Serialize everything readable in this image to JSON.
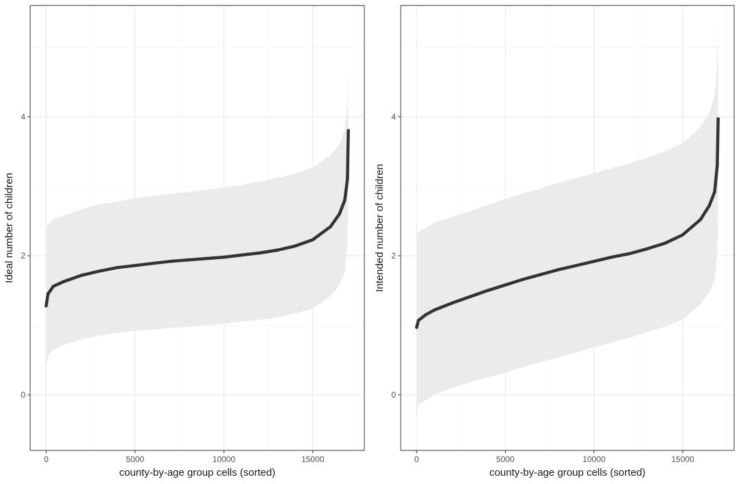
{
  "chart_data": [
    {
      "type": "area",
      "xlabel": "county-by-age group cells (sorted)",
      "ylabel": "Ideal number of children",
      "xlim": [
        -900,
        17900
      ],
      "ylim": [
        -0.8,
        5.6
      ],
      "xticks": [
        0,
        5000,
        10000,
        15000
      ],
      "yticks": [
        0,
        2,
        4
      ],
      "grid": true,
      "points": [
        {
          "x": 0,
          "y": 1.28,
          "lo": 0.4,
          "hi": 2.4
        },
        {
          "x": 100,
          "y": 1.45,
          "lo": 0.55,
          "hi": 2.45
        },
        {
          "x": 400,
          "y": 1.56,
          "lo": 0.65,
          "hi": 2.52
        },
        {
          "x": 1000,
          "y": 1.63,
          "lo": 0.72,
          "hi": 2.58
        },
        {
          "x": 2000,
          "y": 1.72,
          "lo": 0.8,
          "hi": 2.67
        },
        {
          "x": 3000,
          "y": 1.78,
          "lo": 0.85,
          "hi": 2.74
        },
        {
          "x": 4000,
          "y": 1.83,
          "lo": 0.89,
          "hi": 2.78
        },
        {
          "x": 5000,
          "y": 1.86,
          "lo": 0.92,
          "hi": 2.83
        },
        {
          "x": 6000,
          "y": 1.89,
          "lo": 0.94,
          "hi": 2.86
        },
        {
          "x": 7000,
          "y": 1.92,
          "lo": 0.96,
          "hi": 2.89
        },
        {
          "x": 8000,
          "y": 1.94,
          "lo": 0.98,
          "hi": 2.92
        },
        {
          "x": 9000,
          "y": 1.96,
          "lo": 1.0,
          "hi": 2.95
        },
        {
          "x": 10000,
          "y": 1.98,
          "lo": 1.02,
          "hi": 2.98
        },
        {
          "x": 11000,
          "y": 2.01,
          "lo": 1.05,
          "hi": 3.02
        },
        {
          "x": 12000,
          "y": 2.04,
          "lo": 1.08,
          "hi": 3.07
        },
        {
          "x": 13000,
          "y": 2.08,
          "lo": 1.11,
          "hi": 3.12
        },
        {
          "x": 14000,
          "y": 2.14,
          "lo": 1.17,
          "hi": 3.18
        },
        {
          "x": 15000,
          "y": 2.23,
          "lo": 1.24,
          "hi": 3.27
        },
        {
          "x": 16000,
          "y": 2.42,
          "lo": 1.42,
          "hi": 3.45
        },
        {
          "x": 16500,
          "y": 2.6,
          "lo": 1.58,
          "hi": 3.6
        },
        {
          "x": 16800,
          "y": 2.8,
          "lo": 1.76,
          "hi": 3.8
        },
        {
          "x": 16950,
          "y": 3.1,
          "lo": 2.2,
          "hi": 4.2
        },
        {
          "x": 17000,
          "y": 3.8,
          "lo": 2.9,
          "hi": 4.7
        }
      ]
    },
    {
      "type": "area",
      "xlabel": "county-by-age group cells (sorted)",
      "ylabel": "Intended number of children",
      "xlim": [
        -900,
        17900
      ],
      "ylim": [
        -0.8,
        5.6
      ],
      "xticks": [
        0,
        5000,
        10000,
        15000
      ],
      "yticks": [
        0,
        2,
        4
      ],
      "grid": true,
      "points": [
        {
          "x": 0,
          "y": 0.97,
          "lo": -0.25,
          "hi": 2.3
        },
        {
          "x": 100,
          "y": 1.07,
          "lo": -0.15,
          "hi": 2.35
        },
        {
          "x": 500,
          "y": 1.15,
          "lo": -0.08,
          "hi": 2.4
        },
        {
          "x": 1000,
          "y": 1.22,
          "lo": 0.0,
          "hi": 2.48
        },
        {
          "x": 2000,
          "y": 1.32,
          "lo": 0.1,
          "hi": 2.56
        },
        {
          "x": 3000,
          "y": 1.41,
          "lo": 0.18,
          "hi": 2.64
        },
        {
          "x": 4000,
          "y": 1.5,
          "lo": 0.25,
          "hi": 2.73
        },
        {
          "x": 5000,
          "y": 1.58,
          "lo": 0.32,
          "hi": 2.82
        },
        {
          "x": 6000,
          "y": 1.66,
          "lo": 0.4,
          "hi": 2.9
        },
        {
          "x": 7000,
          "y": 1.73,
          "lo": 0.47,
          "hi": 2.97
        },
        {
          "x": 8000,
          "y": 1.8,
          "lo": 0.54,
          "hi": 3.05
        },
        {
          "x": 9000,
          "y": 1.86,
          "lo": 0.61,
          "hi": 3.12
        },
        {
          "x": 10000,
          "y": 1.92,
          "lo": 0.68,
          "hi": 3.19
        },
        {
          "x": 11000,
          "y": 1.98,
          "lo": 0.75,
          "hi": 3.26
        },
        {
          "x": 12000,
          "y": 2.03,
          "lo": 0.82,
          "hi": 3.33
        },
        {
          "x": 13000,
          "y": 2.1,
          "lo": 0.9,
          "hi": 3.41
        },
        {
          "x": 14000,
          "y": 2.18,
          "lo": 0.98,
          "hi": 3.5
        },
        {
          "x": 15000,
          "y": 2.3,
          "lo": 1.08,
          "hi": 3.62
        },
        {
          "x": 16000,
          "y": 2.52,
          "lo": 1.3,
          "hi": 3.85
        },
        {
          "x": 16500,
          "y": 2.72,
          "lo": 1.48,
          "hi": 4.05
        },
        {
          "x": 16800,
          "y": 2.92,
          "lo": 1.65,
          "hi": 4.3
        },
        {
          "x": 16950,
          "y": 3.3,
          "lo": 2.0,
          "hi": 4.8
        },
        {
          "x": 17000,
          "y": 3.97,
          "lo": 2.7,
          "hi": 5.4
        }
      ]
    }
  ],
  "colors": {
    "band": "#ebebeb",
    "line": "#333333",
    "grid_major": "#ebebeb",
    "grid_minor": "#f4f4f4",
    "panel_border": "#333333"
  }
}
